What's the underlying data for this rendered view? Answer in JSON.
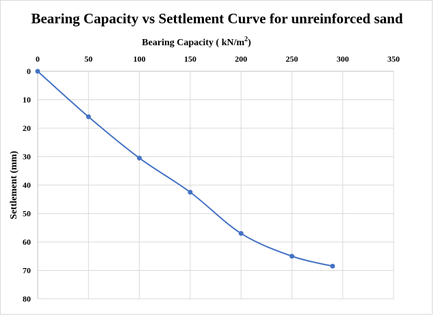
{
  "chart_data": {
    "type": "line",
    "title": "Bearing Capacity vs Settlement Curve for unreinforced sand",
    "xlabel": "Bearing Capacity ( kN/m2)",
    "xlabel_main": "Bearing Capacity ( kN/m",
    "xlabel_sup": "2",
    "xlabel_end": ")",
    "ylabel": "Settlement (mm)",
    "x_axis_position": "top",
    "y_axis_inverted": true,
    "xlim": [
      0,
      350
    ],
    "ylim": [
      0,
      80
    ],
    "x_ticks": [
      "0",
      "50",
      "100",
      "150",
      "200",
      "250",
      "300",
      "350"
    ],
    "y_ticks": [
      "0",
      "10",
      "20",
      "30",
      "40",
      "50",
      "60",
      "70",
      "80"
    ],
    "grid": true,
    "series": [
      {
        "name": "Unreinforced sand",
        "color": "#4472c4",
        "x": [
          0,
          50,
          100,
          150,
          200,
          250,
          290
        ],
        "y": [
          0,
          16,
          30.5,
          42.5,
          57,
          65,
          68.5
        ]
      }
    ]
  }
}
